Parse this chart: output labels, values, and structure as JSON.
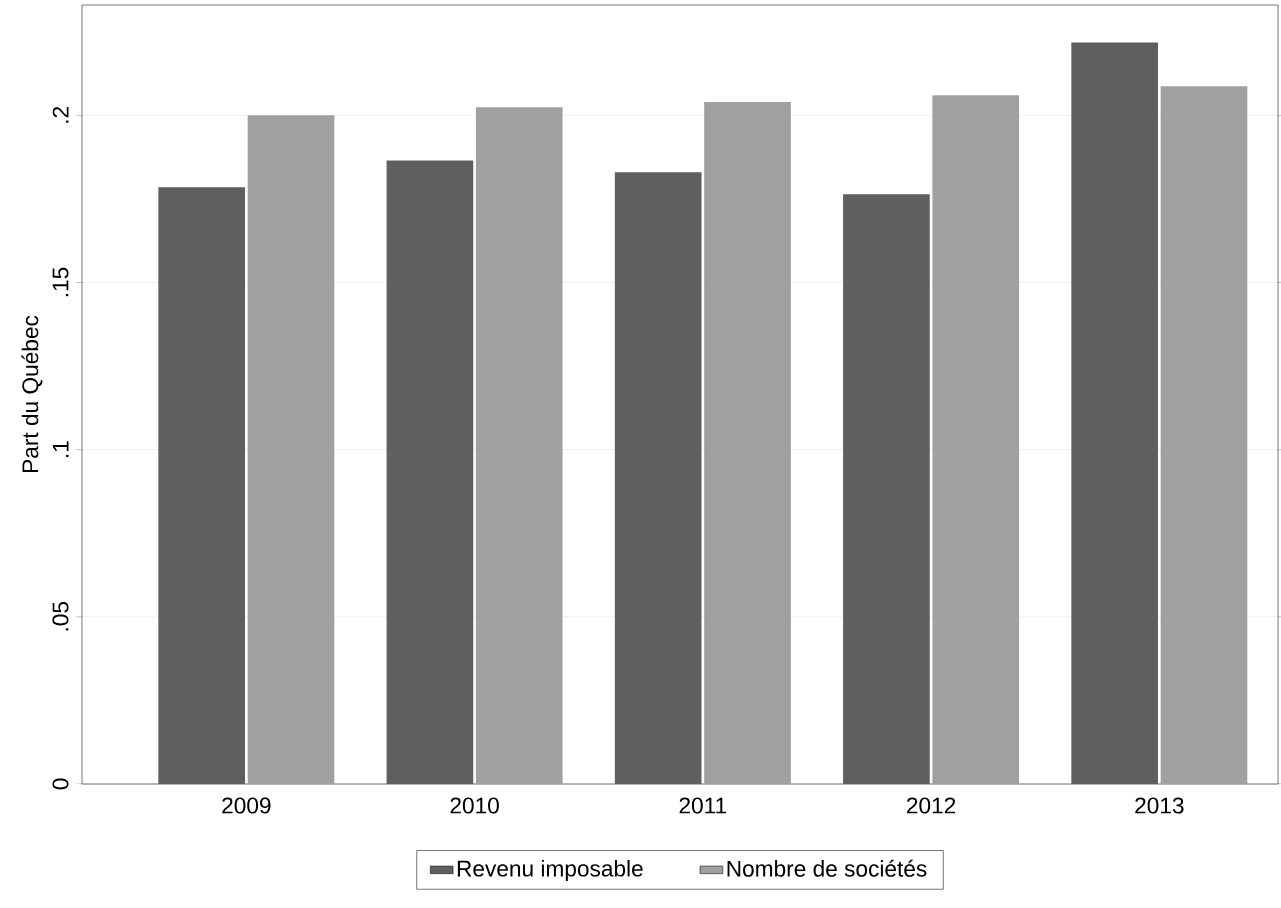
{
  "chart_data": {
    "type": "bar",
    "ylabel": "Part du Québec",
    "categories": [
      "2009",
      "2010",
      "2011",
      "2012",
      "2013"
    ],
    "series": [
      {
        "name": "Revenu imposable",
        "color": "#5f5f5f",
        "values": [
          0.1785,
          0.1865,
          0.183,
          0.1764,
          0.2218
        ]
      },
      {
        "name": "Nombre de sociétés",
        "color": "#a0a0a0",
        "values": [
          0.2,
          0.2024,
          0.204,
          0.206,
          0.2087
        ]
      }
    ],
    "ylim": [
      0,
      0.233
    ],
    "yticks": [
      0,
      {
        "value": 0.05,
        "label": ".05"
      },
      {
        "value": 0.1,
        "label": ".1"
      },
      {
        "value": 0.15,
        "label": ".15"
      },
      {
        "value": 0.2,
        "label": ".2"
      }
    ],
    "grid": "y",
    "legend": "bottom"
  }
}
